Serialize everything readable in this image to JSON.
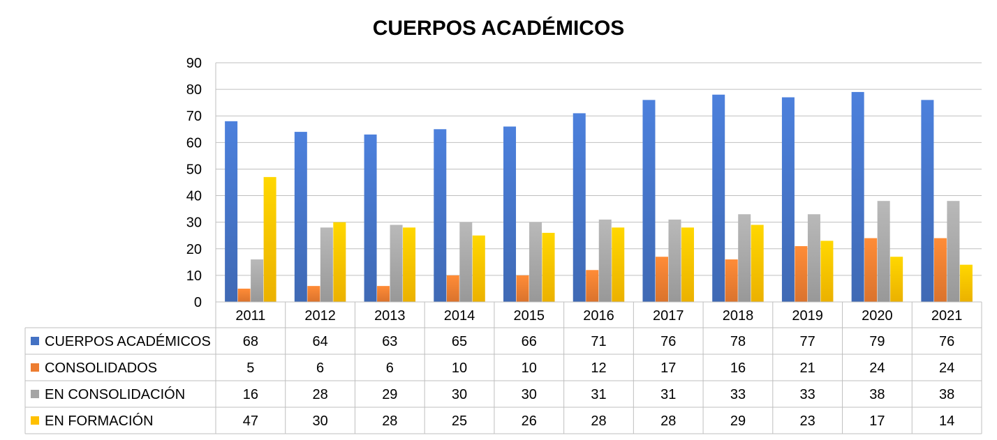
{
  "chart_data": {
    "type": "bar",
    "title": "CUERPOS ACADÉMICOS",
    "xlabel": "",
    "ylabel": "",
    "ylim": [
      0,
      90
    ],
    "yticks": [
      0,
      10,
      20,
      30,
      40,
      50,
      60,
      70,
      80,
      90
    ],
    "grid": true,
    "legend": "data-table-bottom",
    "categories": [
      "2011",
      "2012",
      "2013",
      "2014",
      "2015",
      "2016",
      "2017",
      "2018",
      "2019",
      "2020",
      "2021"
    ],
    "series": [
      {
        "name": "CUERPOS ACADÉMICOS",
        "color": "#4472C4",
        "values": [
          68,
          64,
          63,
          65,
          66,
          71,
          76,
          78,
          77,
          79,
          76
        ]
      },
      {
        "name": "CONSOLIDADOS",
        "color": "#ED7D31",
        "values": [
          5,
          6,
          6,
          10,
          10,
          12,
          17,
          16,
          21,
          24,
          24
        ]
      },
      {
        "name": "EN CONSOLIDACIÓN",
        "color": "#A5A5A5",
        "values": [
          16,
          28,
          29,
          30,
          30,
          31,
          31,
          33,
          33,
          38,
          38
        ]
      },
      {
        "name": "EN FORMACIÓN",
        "color": "#FFC000",
        "values": [
          47,
          30,
          28,
          25,
          26,
          28,
          28,
          29,
          23,
          17,
          14
        ]
      }
    ]
  }
}
